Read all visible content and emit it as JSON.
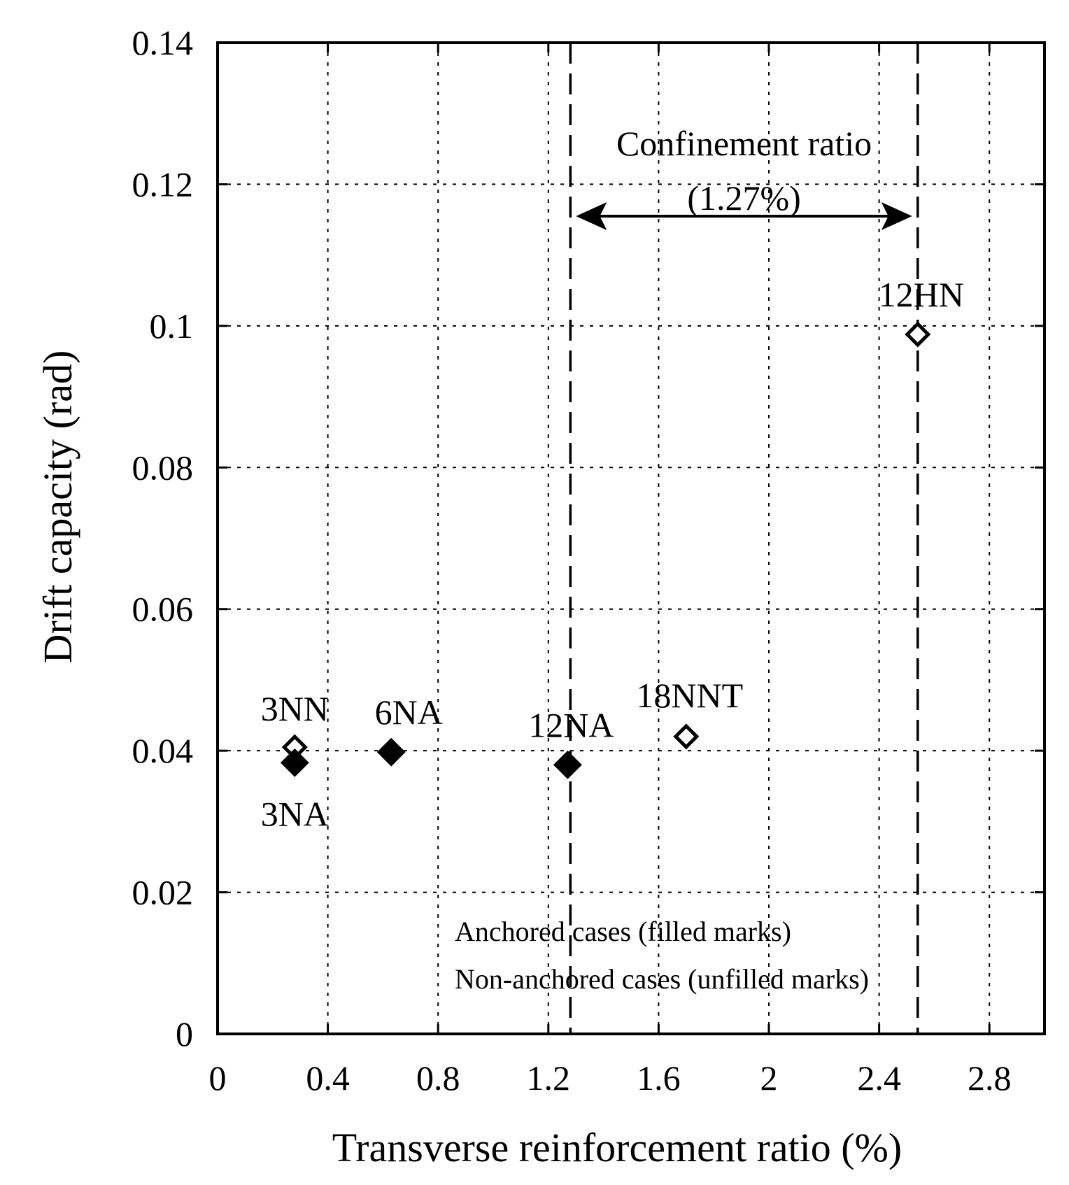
{
  "chart_data": {
    "type": "scatter",
    "xlabel": "Transverse reinforcement ratio (%)",
    "ylabel": "Drift capacity (rad)",
    "xlim": [
      0,
      3.0
    ],
    "ylim": [
      0,
      0.14
    ],
    "x_ticks": [
      0,
      0.4,
      0.8,
      1.2,
      1.6,
      2,
      2.4,
      2.8
    ],
    "x_tick_labels": [
      "0",
      "0.4",
      "0.8",
      "1.2",
      "1.6",
      "2",
      "2.4",
      "2.8"
    ],
    "y_ticks": [
      0,
      0.02,
      0.04,
      0.06,
      0.08,
      0.1,
      0.12,
      0.14
    ],
    "y_tick_labels": [
      "0",
      "0.02",
      "0.04",
      "0.06",
      "0.08",
      "0.1",
      "0.12",
      "0.14"
    ],
    "grid": true,
    "points": [
      {
        "label": "3NN",
        "x": 0.28,
        "y": 0.0405,
        "anchored": false
      },
      {
        "label": "3NA",
        "x": 0.28,
        "y": 0.0383,
        "anchored": true
      },
      {
        "label": "6NA",
        "x": 0.63,
        "y": 0.0398,
        "anchored": true
      },
      {
        "label": "12NA",
        "x": 1.27,
        "y": 0.038,
        "anchored": true
      },
      {
        "label": "18NNT",
        "x": 1.7,
        "y": 0.042,
        "anchored": false
      },
      {
        "label": "12HN",
        "x": 2.54,
        "y": 0.0988,
        "anchored": false
      }
    ],
    "reference_lines": [
      {
        "x": 1.28,
        "style": "dashed"
      },
      {
        "x": 2.54,
        "style": "dashed"
      }
    ],
    "annotation": {
      "text_line1": "Confinement ratio",
      "text_line2": "(1.27%)",
      "arrow_from_x": 1.28,
      "arrow_to_x": 2.54,
      "arrow_y": 0.1155
    },
    "legend": {
      "position": "bottom-right",
      "line1": "Anchored cases (filled marks)",
      "line2": "Non-anchored cases (unfilled marks)"
    }
  }
}
